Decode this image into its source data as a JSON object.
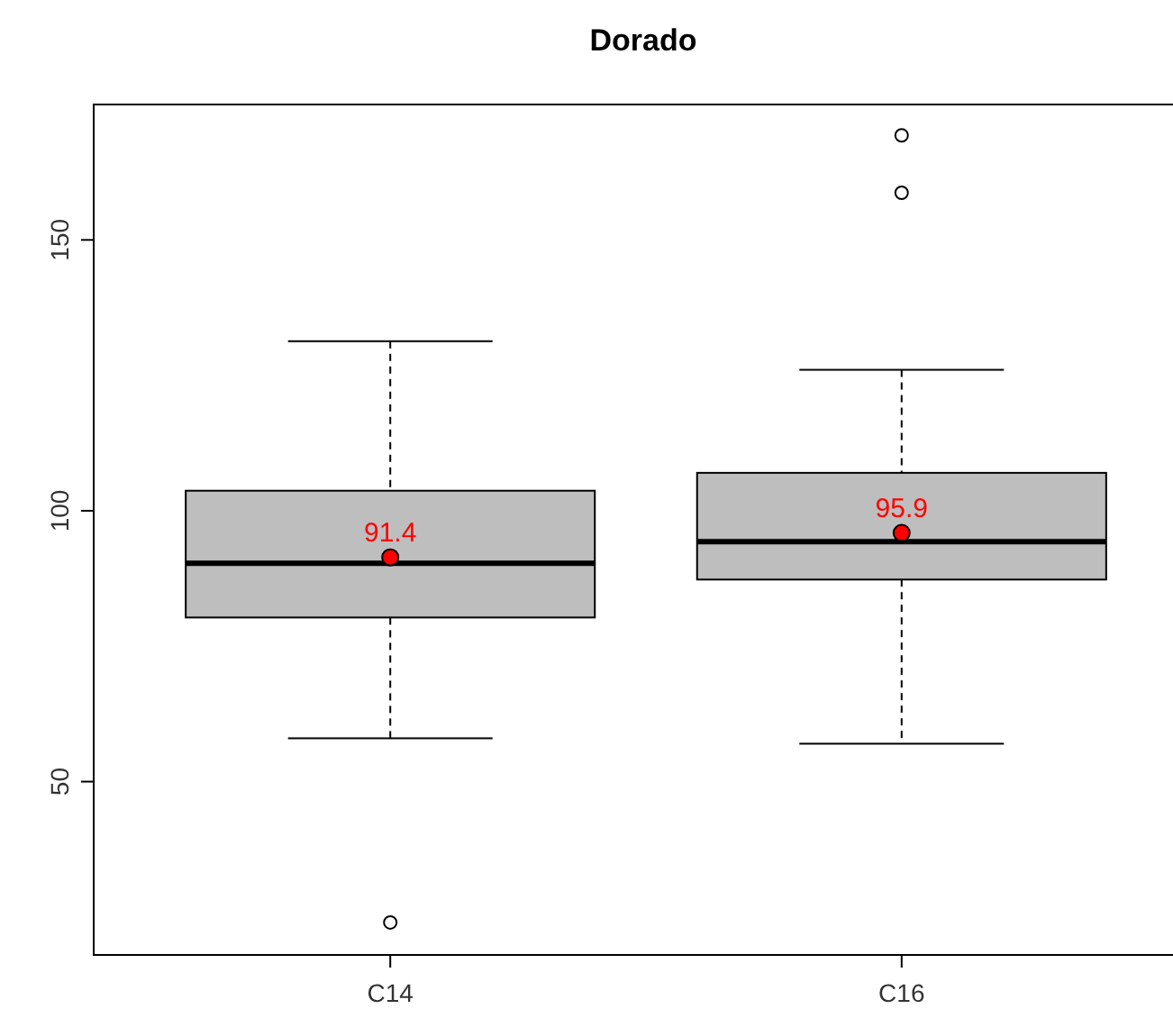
{
  "chart_data": {
    "type": "box",
    "title": "Dorado",
    "categories": [
      "C14",
      "C16"
    ],
    "boxes": [
      {
        "low": 58,
        "q1": 80.3,
        "median": 90.3,
        "q3": 103.7,
        "high": 131.3,
        "mean": 91.4,
        "outliers": [
          24
        ]
      },
      {
        "low": 57,
        "q1": 87.3,
        "median": 94.3,
        "q3": 107,
        "high": 126,
        "mean": 95.9,
        "outliers": [
          158.7,
          169.3
        ]
      }
    ],
    "color": "#bebebe",
    "ylim": [
      18,
      175
    ],
    "yticks": [
      50,
      100,
      150
    ],
    "annotations": [
      {
        "text": "91.4",
        "x": "C14",
        "y": 91.4
      },
      {
        "text": "95.9",
        "x": "C16",
        "y": 95.9
      }
    ]
  }
}
